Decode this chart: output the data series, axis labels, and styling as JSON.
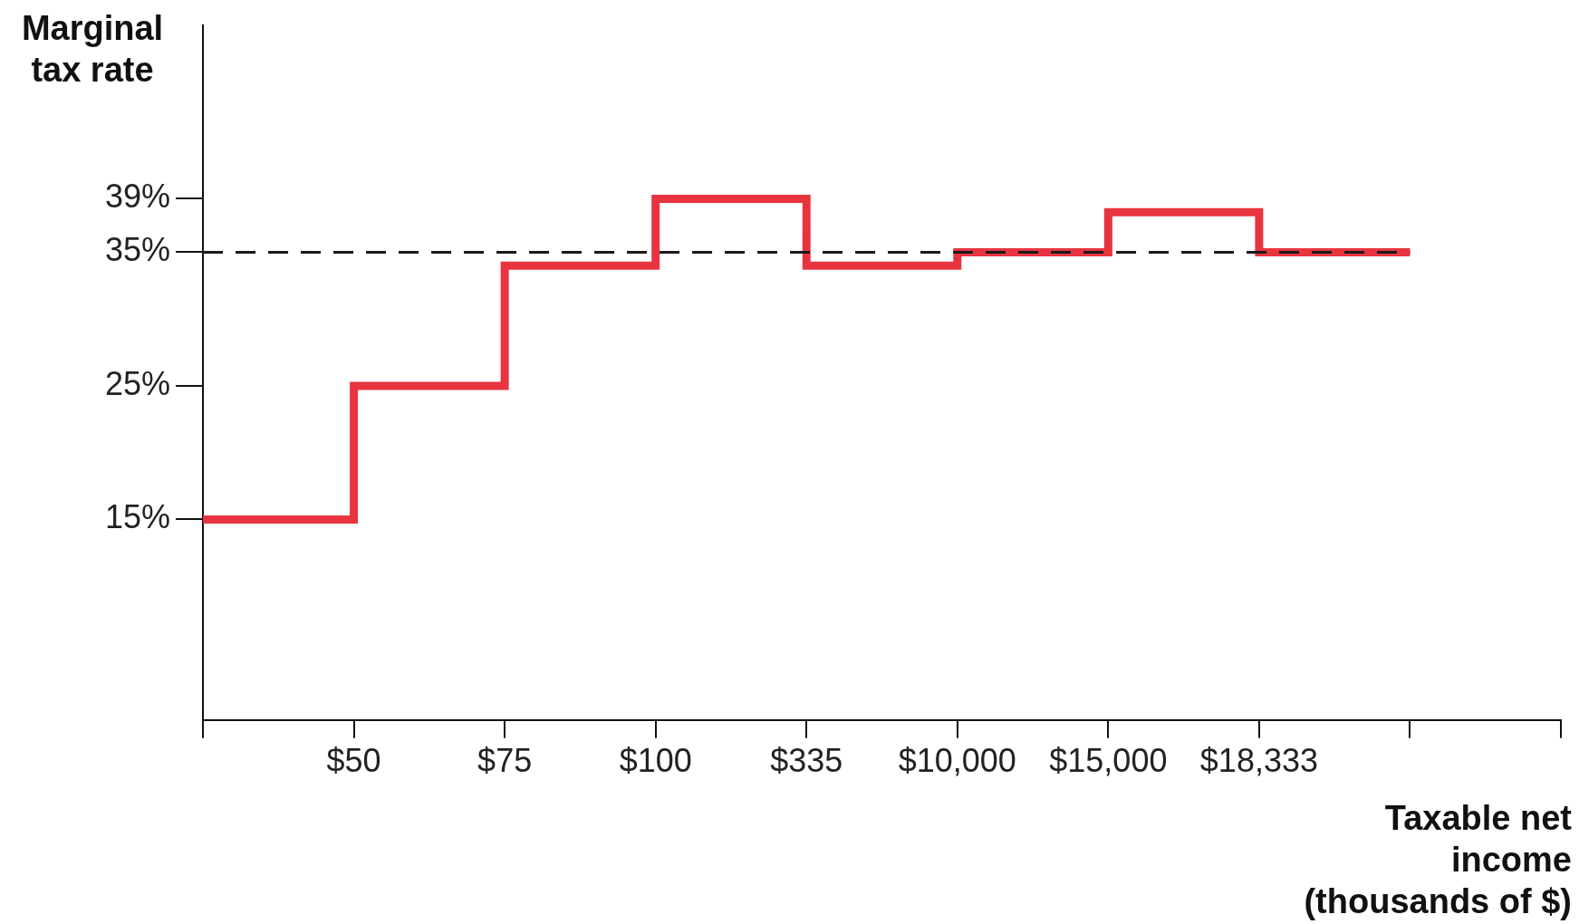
{
  "chart_data": {
    "type": "step",
    "xlabel": "Taxable net income (thousands of $)",
    "ylabel": "Marginal tax rate",
    "categories": [
      null,
      "$50",
      "$75",
      "$100",
      "$335",
      "$10,000",
      "$15,000",
      "$18,333",
      null,
      null
    ],
    "series": [
      {
        "color": "#e8343f",
        "values": [
          15,
          25,
          34,
          39,
          34,
          35,
          38,
          35,
          35,
          null
        ]
      }
    ],
    "ylim": [
      0,
      52
    ],
    "yticks": [
      {
        "value": 15,
        "label": "15%"
      },
      {
        "value": 25,
        "label": "25%"
      },
      {
        "value": 35,
        "label": "35%"
      },
      {
        "value": 39,
        "label": "39%"
      }
    ],
    "ref_lines": [
      {
        "axis": "y",
        "value": 35,
        "color": "#1a1a1a",
        "line_style": "dashed"
      }
    ],
    "marker": "none"
  }
}
